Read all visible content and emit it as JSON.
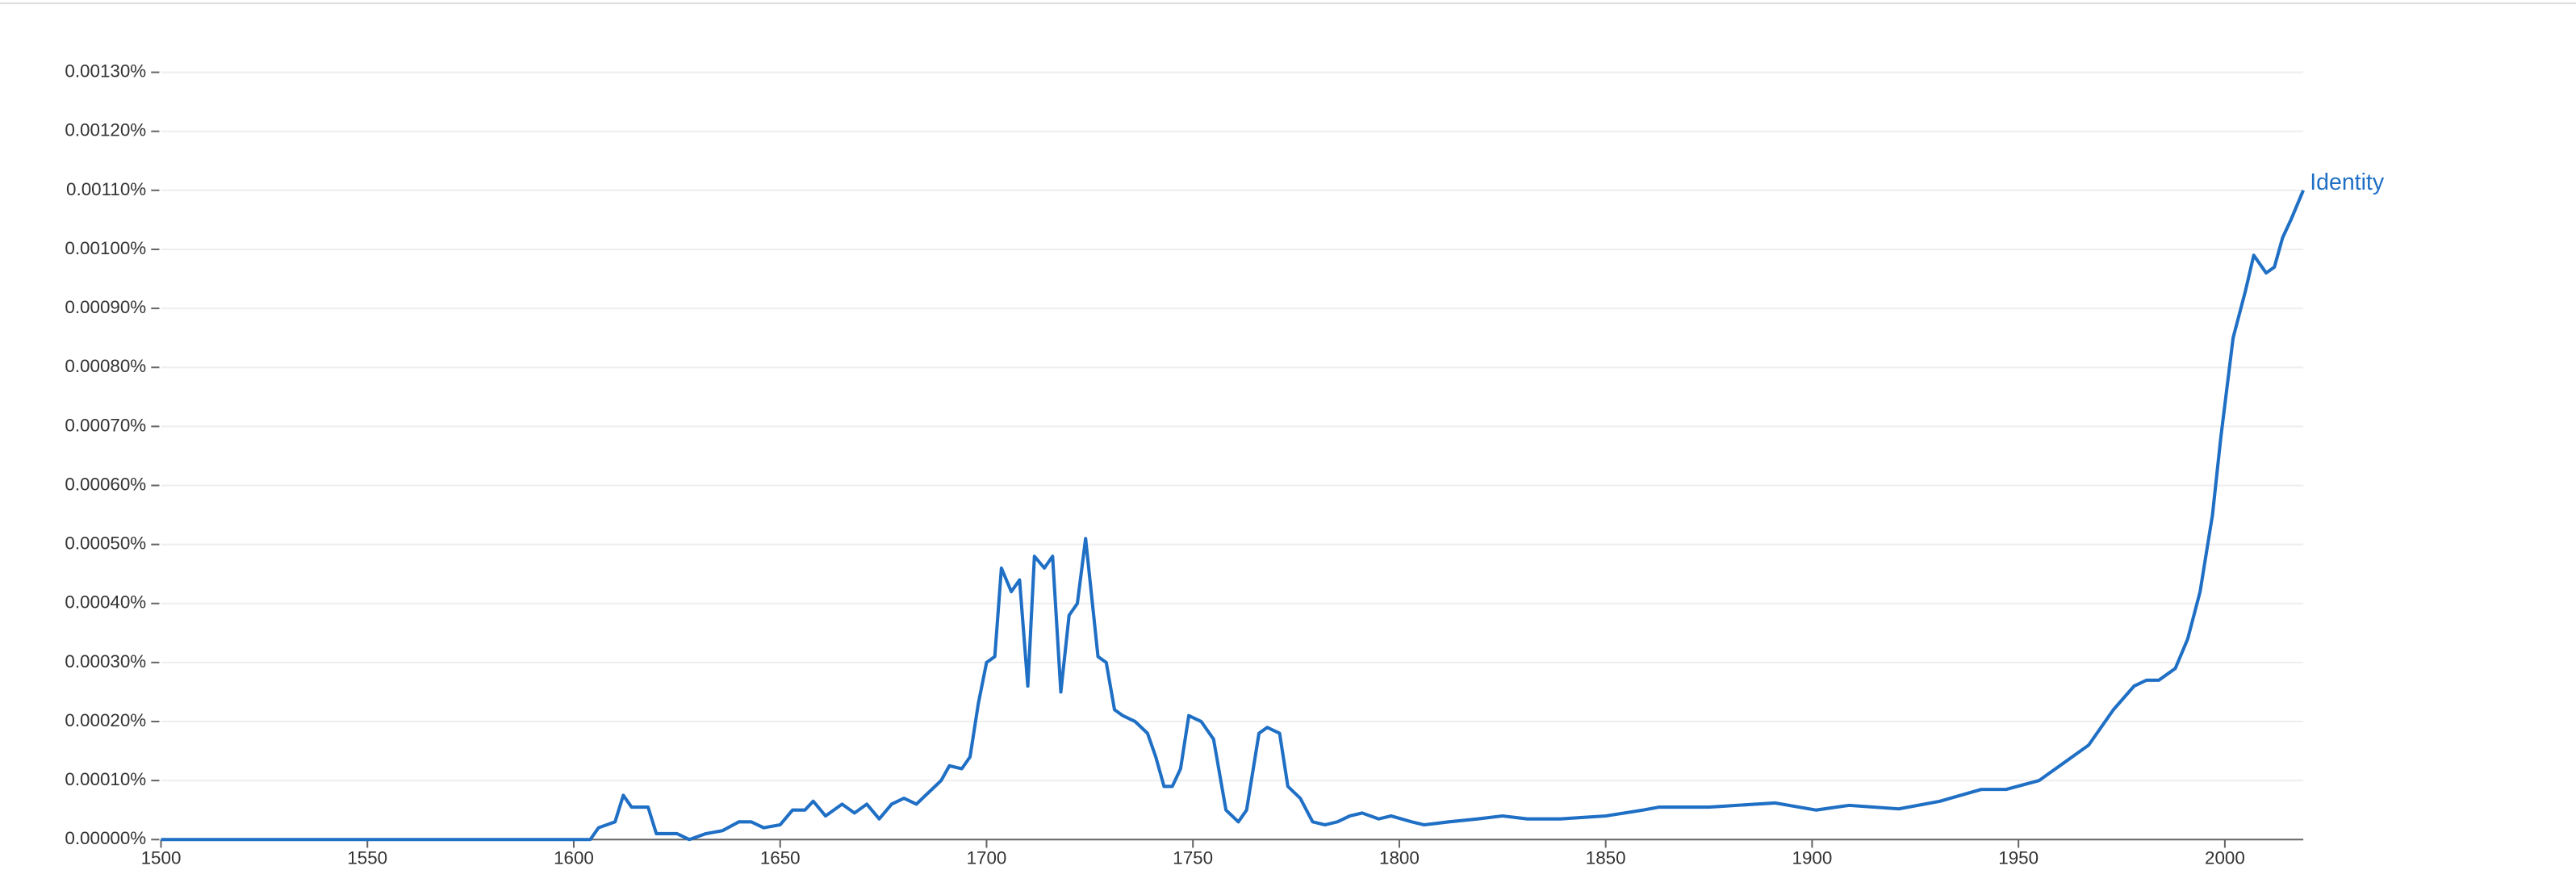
{
  "chart_data": {
    "type": "line",
    "series": [
      {
        "name": "Identity",
        "color": "#1f6fc5",
        "x": [
          1500,
          1604,
          1606,
          1610,
          1612,
          1614,
          1618,
          1620,
          1625,
          1628,
          1632,
          1636,
          1640,
          1643,
          1646,
          1650,
          1653,
          1656,
          1658,
          1661,
          1665,
          1668,
          1671,
          1674,
          1677,
          1680,
          1683,
          1686,
          1689,
          1691,
          1694,
          1696,
          1698,
          1700,
          1702,
          1703.6,
          1706,
          1708,
          1710,
          1711.6,
          1714,
          1716,
          1718,
          1720,
          1722,
          1724,
          1727,
          1729,
          1731,
          1733,
          1736,
          1739,
          1741,
          1743,
          1745,
          1747,
          1749,
          1752,
          1755,
          1758,
          1761,
          1763,
          1766,
          1768,
          1771,
          1773,
          1776,
          1779,
          1782,
          1785,
          1788,
          1791,
          1795,
          1798,
          1803,
          1806,
          1812,
          1819,
          1825,
          1831,
          1839,
          1850,
          1859,
          1863,
          1875,
          1891,
          1901,
          1909,
          1921,
          1931,
          1941,
          1947,
          1955,
          1961,
          1967,
          1973,
          1978,
          1981,
          1984,
          1988,
          1991,
          1994,
          1997,
          1999,
          2002,
          2005,
          2007,
          2010,
          2012,
          2014,
          2016,
          2019
        ],
        "values": [
          0,
          0,
          2e-05,
          3e-05,
          7.5e-05,
          5.5e-05,
          5.5e-05,
          1e-05,
          1e-05,
          0,
          1e-05,
          1.5e-05,
          3e-05,
          3e-05,
          2e-05,
          2.5e-05,
          5e-05,
          5e-05,
          6.5e-05,
          4e-05,
          6e-05,
          4.5e-05,
          6e-05,
          3.5e-05,
          6e-05,
          7e-05,
          6e-05,
          8e-05,
          0.0001,
          0.000125,
          0.00012,
          0.00014,
          0.00023,
          0.0003,
          0.00031,
          0.00046,
          0.00042,
          0.00044,
          0.00026,
          0.00048,
          0.00046,
          0.00048,
          0.00025,
          0.00038,
          0.0004,
          0.00051,
          0.00031,
          0.0003,
          0.00022,
          0.00021,
          0.0002,
          0.00018,
          0.00014,
          9e-05,
          9e-05,
          0.00012,
          0.00021,
          0.0002,
          0.00017,
          5e-05,
          3e-05,
          5e-05,
          0.00018,
          0.00019,
          0.00018,
          9e-05,
          7e-05,
          3e-05,
          2.5e-05,
          3e-05,
          4e-05,
          4.5e-05,
          3.5e-05,
          4e-05,
          3e-05,
          2.5e-05,
          3e-05,
          3.5e-05,
          4e-05,
          3.5e-05,
          3.5e-05,
          4e-05,
          5e-05,
          5.5e-05,
          5.5e-05,
          6.2e-05,
          5e-05,
          5.8e-05,
          5.2e-05,
          6.5e-05,
          8.5e-05,
          8.5e-05,
          0.0001,
          0.00013,
          0.00016,
          0.00022,
          0.00026,
          0.00027,
          0.00027,
          0.00029,
          0.00034,
          0.00042,
          0.00055,
          0.00068,
          0.00085,
          0.00093,
          0.00099,
          0.00096,
          0.00097,
          0.00102,
          0.00105,
          0.0011
        ]
      }
    ],
    "xlim": [
      1500,
      2019
    ],
    "xticks": [
      1500,
      1550,
      1600,
      1650,
      1700,
      1750,
      1800,
      1850,
      1900,
      1950,
      2000
    ],
    "ylim": [
      0,
      0.0013
    ],
    "yticks": [
      {
        "value": 0,
        "label": "0.00000%"
      },
      {
        "value": 0.0001,
        "label": "0.00010%"
      },
      {
        "value": 0.0002,
        "label": "0.00020%"
      },
      {
        "value": 0.0003,
        "label": "0.00030%"
      },
      {
        "value": 0.0004,
        "label": "0.00040%"
      },
      {
        "value": 0.0005,
        "label": "0.00050%"
      },
      {
        "value": 0.0006,
        "label": "0.00060%"
      },
      {
        "value": 0.0007,
        "label": "0.00070%"
      },
      {
        "value": 0.0008,
        "label": "0.00080%"
      },
      {
        "value": 0.0009,
        "label": "0.00090%"
      },
      {
        "value": 0.001,
        "label": "0.00100%"
      },
      {
        "value": 0.0011,
        "label": "0.00110%"
      },
      {
        "value": 0.0012,
        "label": "0.00120%"
      },
      {
        "value": 0.0013,
        "label": "0.00130%"
      }
    ],
    "grid": true
  }
}
